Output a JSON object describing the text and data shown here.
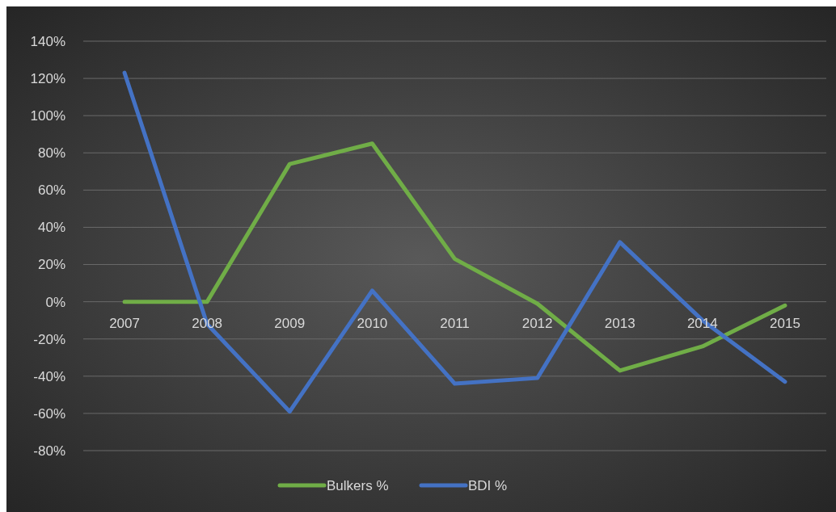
{
  "chart_data": {
    "type": "line",
    "categories": [
      "2007",
      "2008",
      "2009",
      "2010",
      "2011",
      "2012",
      "2013",
      "2014",
      "2015"
    ],
    "series": [
      {
        "name": "Bulkers %",
        "color": "#70ad47",
        "values": [
          0,
          0,
          74,
          85,
          23,
          -1,
          -37,
          -24,
          -2
        ]
      },
      {
        "name": "BDI %",
        "color": "#4472c4",
        "values": [
          123,
          -12,
          -59,
          6,
          -44,
          -41,
          32,
          -10,
          -43
        ]
      }
    ],
    "ylim": [
      -80,
      140
    ],
    "yticks": [
      {
        "value": -80,
        "label": "-80%"
      },
      {
        "value": -60,
        "label": "-60%"
      },
      {
        "value": -40,
        "label": "-40%"
      },
      {
        "value": -20,
        "label": "-20%"
      },
      {
        "value": 0,
        "label": "0%"
      },
      {
        "value": 20,
        "label": "20%"
      },
      {
        "value": 40,
        "label": "40%"
      },
      {
        "value": 60,
        "label": "60%"
      },
      {
        "value": 80,
        "label": "80%"
      },
      {
        "value": 100,
        "label": "100%"
      },
      {
        "value": 120,
        "label": "120%"
      },
      {
        "value": 140,
        "label": "140%"
      }
    ],
    "grid": "y",
    "legend": "bottom",
    "marker": "none",
    "line_style": "solid"
  }
}
